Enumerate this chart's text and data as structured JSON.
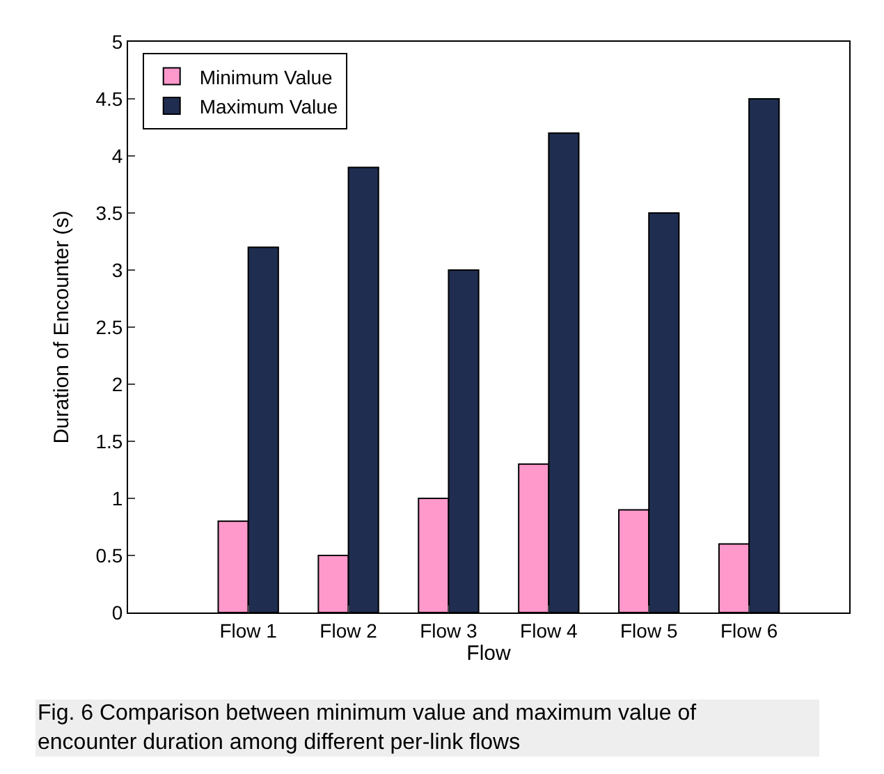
{
  "chart_data": {
    "type": "bar",
    "xlabel": "Flow",
    "ylabel": "Duration of Encounter (s)",
    "categories": [
      "Flow 1",
      "Flow 2",
      "Flow 3",
      "Flow 4",
      "Flow 5",
      "Flow 6"
    ],
    "series": [
      {
        "name": "Minimum Value",
        "color": "#ff99cc",
        "values": [
          0.8,
          0.5,
          1.0,
          1.3,
          0.9,
          0.6
        ]
      },
      {
        "name": "Maximum Value",
        "color": "#1f2d50",
        "values": [
          3.2,
          3.9,
          3.0,
          4.2,
          3.5,
          4.5
        ]
      }
    ],
    "ylim": [
      0,
      5
    ],
    "yticks": [
      0,
      0.5,
      1,
      1.5,
      2,
      2.5,
      3,
      3.5,
      4,
      4.5,
      5
    ],
    "legend": "top left",
    "annotations": [
      "Fig. 6 Comparison between minimum value and maximum value of encounter duration among different per-link flows"
    ]
  }
}
